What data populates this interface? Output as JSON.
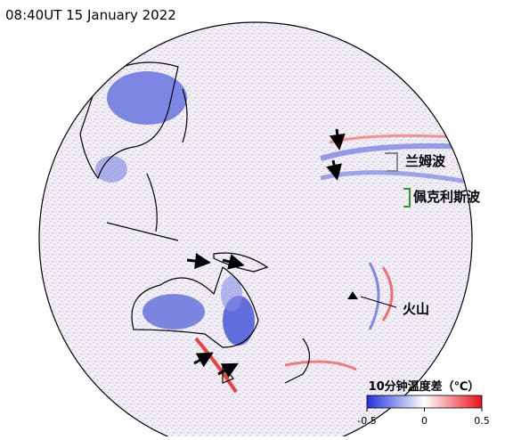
{
  "header": {
    "timestamp": "08:40UT 15 January 2022"
  },
  "annotations": {
    "lamb_wave": "兰姆波",
    "pekeris_wave": "佩克利斯波",
    "volcano": "火山"
  },
  "colorbar": {
    "title": "10分钟温度差（℃）",
    "lim": [
      -0.5,
      0.5
    ],
    "ticks": [
      -0.5,
      0,
      0.5
    ]
  }
}
